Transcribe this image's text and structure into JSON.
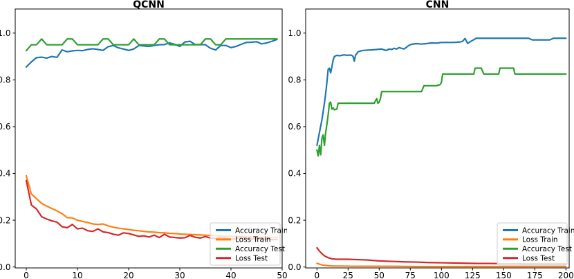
{
  "figure": {
    "background": "#ffffff"
  },
  "palette": {
    "accuracy_train": "#1f77b4",
    "loss_train": "#ff7f0e",
    "accuracy_test": "#2ca02c",
    "loss_test": "#d62728"
  },
  "chart_data": [
    {
      "id": "qcnn",
      "type": "line",
      "title": "QCNN",
      "xlabel": "",
      "ylabel": "",
      "grid": false,
      "legend_position": "lower right",
      "xlim": [
        -2.16,
        50.0
      ],
      "ylim": [
        -0.004,
        1.103
      ],
      "xticks": [
        0,
        10,
        20,
        30,
        40,
        50
      ],
      "yticks": [
        0.0,
        0.2,
        0.4,
        0.6,
        0.8,
        1.0
      ],
      "ytick_labels": [
        "0.0",
        "0.2",
        "0.4",
        "0.6",
        "0.8",
        "1.0"
      ],
      "legend": [
        "Accuracy Train",
        "Loss Train",
        "Accuracy Test",
        "Loss Test"
      ],
      "series": [
        {
          "name": "Accuracy Train",
          "color": "#1f77b4",
          "x": [
            0,
            1,
            2,
            3,
            4,
            5,
            6,
            7,
            8,
            9,
            10,
            11,
            12,
            13,
            14,
            15,
            16,
            17,
            18,
            19,
            20,
            21,
            22,
            23,
            24,
            25,
            26,
            27,
            28,
            29,
            30,
            31,
            32,
            33,
            34,
            35,
            36,
            37,
            38,
            39,
            40,
            41,
            42,
            43,
            44,
            45,
            46,
            47,
            48,
            49
          ],
          "y": [
            0.855,
            0.877,
            0.895,
            0.897,
            0.893,
            0.9,
            0.896,
            0.928,
            0.92,
            0.924,
            0.926,
            0.925,
            0.93,
            0.933,
            0.93,
            0.926,
            0.942,
            0.947,
            0.937,
            0.932,
            0.926,
            0.932,
            0.947,
            0.945,
            0.943,
            0.947,
            0.95,
            0.951,
            0.958,
            0.952,
            0.943,
            0.962,
            0.965,
            0.951,
            0.951,
            0.95,
            0.935,
            0.928,
            0.947,
            0.947,
            0.938,
            0.943,
            0.952,
            0.96,
            0.961,
            0.963,
            0.954,
            0.958,
            0.965,
            0.973
          ]
        },
        {
          "name": "Loss Train",
          "color": "#ff7f0e",
          "x": [
            0,
            1,
            2,
            3,
            4,
            5,
            6,
            7,
            8,
            9,
            10,
            11,
            12,
            13,
            14,
            15,
            16,
            17,
            18,
            19,
            20,
            21,
            22,
            23,
            24,
            25,
            26,
            27,
            28,
            29,
            30,
            31,
            32,
            33,
            34,
            35,
            36,
            37,
            38,
            39,
            40,
            41,
            42,
            43,
            44,
            45,
            46,
            47,
            48,
            49
          ],
          "y": [
            0.39,
            0.312,
            0.292,
            0.272,
            0.26,
            0.25,
            0.24,
            0.228,
            0.211,
            0.21,
            0.2,
            0.195,
            0.19,
            0.184,
            0.182,
            0.184,
            0.176,
            0.17,
            0.166,
            0.163,
            0.16,
            0.157,
            0.155,
            0.152,
            0.15,
            0.149,
            0.147,
            0.146,
            0.144,
            0.143,
            0.141,
            0.14,
            0.139,
            0.138,
            0.137,
            0.136,
            0.135,
            0.134,
            0.133,
            0.132,
            0.131,
            0.131,
            0.13,
            0.129,
            0.129,
            0.128,
            0.127,
            0.127,
            0.126,
            0.126
          ]
        },
        {
          "name": "Accuracy Test",
          "color": "#2ca02c",
          "x": [
            0,
            1,
            2,
            3,
            4,
            5,
            6,
            7,
            8,
            9,
            10,
            11,
            12,
            13,
            14,
            15,
            16,
            17,
            18,
            19,
            20,
            21,
            22,
            23,
            24,
            25,
            26,
            27,
            28,
            29,
            30,
            31,
            32,
            33,
            34,
            35,
            36,
            37,
            38,
            39,
            40,
            41,
            42,
            43,
            44,
            45,
            46,
            47,
            48,
            49
          ],
          "y": [
            0.925,
            0.95,
            0.95,
            0.975,
            0.95,
            0.95,
            0.95,
            0.95,
            0.975,
            0.975,
            0.95,
            0.95,
            0.95,
            0.95,
            0.95,
            0.975,
            0.975,
            0.95,
            0.95,
            0.95,
            0.95,
            0.975,
            0.95,
            0.95,
            0.95,
            0.95,
            0.975,
            0.975,
            0.95,
            0.95,
            0.95,
            0.95,
            0.95,
            0.95,
            0.95,
            0.975,
            0.975,
            0.95,
            0.95,
            0.975,
            0.975,
            0.975,
            0.975,
            0.975,
            0.975,
            0.975,
            0.975,
            0.975,
            0.975,
            0.975
          ]
        },
        {
          "name": "Loss Test",
          "color": "#d62728",
          "x": [
            0,
            1,
            2,
            3,
            4,
            5,
            6,
            7,
            8,
            9,
            10,
            11,
            12,
            13,
            14,
            15,
            16,
            17,
            18,
            19,
            20,
            21,
            22,
            23,
            24,
            25,
            26,
            27,
            28,
            29,
            30,
            31,
            32,
            33,
            34,
            35,
            36,
            37,
            38,
            39,
            40,
            41,
            42,
            43,
            44,
            45,
            46,
            47,
            48,
            49
          ],
          "y": [
            0.37,
            0.265,
            0.248,
            0.215,
            0.205,
            0.197,
            0.192,
            0.172,
            0.168,
            0.182,
            0.163,
            0.166,
            0.155,
            0.152,
            0.163,
            0.15,
            0.147,
            0.14,
            0.136,
            0.146,
            0.143,
            0.137,
            0.131,
            0.133,
            0.128,
            0.136,
            0.126,
            0.14,
            0.128,
            0.126,
            0.124,
            0.125,
            0.135,
            0.127,
            0.124,
            0.13,
            0.124,
            0.121,
            0.127,
            0.124,
            0.119,
            0.12,
            0.13,
            0.121,
            0.119,
            0.122,
            0.118,
            0.12,
            0.117,
            0.118
          ]
        }
      ]
    },
    {
      "id": "cnn",
      "type": "line",
      "title": "CNN",
      "xlabel": "",
      "ylabel": "",
      "grid": false,
      "legend_position": "lower right",
      "xlim": [
        -9.06,
        202.6
      ],
      "ylim": [
        -0.004,
        1.103
      ],
      "xticks": [
        0,
        25,
        50,
        75,
        100,
        125,
        150,
        175,
        200
      ],
      "yticks": [
        0.0,
        0.2,
        0.4,
        0.6,
        0.8,
        1.0
      ],
      "ytick_labels": [
        "0.0",
        "0.2",
        "0.4",
        "0.6",
        "0.8",
        "1.0"
      ],
      "legend": [
        "Accuracy Train",
        "Loss Train",
        "Accuracy Test",
        "Loss Test"
      ],
      "series": [
        {
          "name": "Accuracy Train",
          "color": "#1f77b4",
          "x": [
            0,
            2,
            4,
            6,
            7,
            8,
            9,
            10,
            11,
            12,
            13,
            14,
            16,
            18,
            20,
            22,
            24,
            26,
            28,
            29,
            30,
            31,
            33,
            36,
            40,
            44,
            48,
            52,
            54,
            56,
            58,
            60,
            62,
            64,
            66,
            68,
            70,
            72,
            74,
            76,
            80,
            84,
            88,
            92,
            96,
            100,
            105,
            110,
            115,
            117,
            119,
            121,
            124,
            128,
            132,
            140,
            150,
            160,
            170,
            173,
            180,
            187,
            190,
            195,
            200
          ],
          "y": [
            0.52,
            0.575,
            0.63,
            0.7,
            0.74,
            0.79,
            0.845,
            0.85,
            0.83,
            0.855,
            0.885,
            0.9,
            0.905,
            0.903,
            0.905,
            0.907,
            0.905,
            0.906,
            0.905,
            0.9,
            0.88,
            0.905,
            0.92,
            0.925,
            0.927,
            0.928,
            0.93,
            0.932,
            0.928,
            0.926,
            0.932,
            0.93,
            0.935,
            0.932,
            0.938,
            0.935,
            0.932,
            0.94,
            0.948,
            0.952,
            0.955,
            0.953,
            0.955,
            0.958,
            0.957,
            0.96,
            0.96,
            0.96,
            0.962,
            0.965,
            0.977,
            0.956,
            0.966,
            0.978,
            0.978,
            0.978,
            0.978,
            0.978,
            0.978,
            0.971,
            0.971,
            0.971,
            0.978,
            0.978,
            0.978
          ]
        },
        {
          "name": "Loss Train",
          "color": "#ff7f0e",
          "x": [
            0,
            2,
            4,
            6,
            8,
            10,
            14,
            20,
            30,
            40,
            60,
            80,
            100,
            120,
            140,
            160,
            180,
            200
          ],
          "y": [
            0.016,
            0.012,
            0.009,
            0.007,
            0.006,
            0.005,
            0.004,
            0.004,
            0.003,
            0.003,
            0.003,
            0.002,
            0.002,
            0.002,
            0.002,
            0.002,
            0.002,
            0.002
          ]
        },
        {
          "name": "Accuracy Test",
          "color": "#2ca02c",
          "x": [
            0,
            1,
            2,
            3,
            4,
            5,
            6,
            7,
            8,
            9,
            10,
            11,
            12,
            13,
            14,
            16,
            17,
            19,
            24,
            28,
            34,
            40,
            46,
            48,
            49,
            50,
            51,
            52,
            56,
            60,
            66,
            72,
            78,
            84,
            86,
            88,
            92,
            96,
            99,
            100,
            101,
            104,
            110,
            116,
            120,
            124,
            126,
            127,
            129,
            132,
            134,
            136,
            140,
            144,
            146,
            147,
            149,
            152,
            156,
            158,
            159,
            162,
            168,
            176,
            184,
            192,
            200
          ],
          "y": [
            0.5,
            0.475,
            0.52,
            0.48,
            0.55,
            0.565,
            0.52,
            0.575,
            0.61,
            0.65,
            0.7,
            0.705,
            0.675,
            0.68,
            0.672,
            0.675,
            0.7,
            0.7,
            0.7,
            0.7,
            0.7,
            0.7,
            0.7,
            0.72,
            0.7,
            0.705,
            0.72,
            0.75,
            0.75,
            0.75,
            0.75,
            0.75,
            0.75,
            0.75,
            0.775,
            0.775,
            0.775,
            0.775,
            0.78,
            0.79,
            0.825,
            0.825,
            0.825,
            0.825,
            0.825,
            0.825,
            0.825,
            0.85,
            0.85,
            0.85,
            0.825,
            0.825,
            0.825,
            0.825,
            0.825,
            0.85,
            0.85,
            0.85,
            0.85,
            0.85,
            0.825,
            0.825,
            0.825,
            0.825,
            0.825,
            0.825,
            0.825
          ]
        },
        {
          "name": "Loss Test",
          "color": "#d62728",
          "x": [
            0,
            1,
            2,
            3,
            4,
            5,
            6,
            8,
            10,
            12,
            14,
            16,
            20,
            25,
            30,
            35,
            40,
            50,
            60,
            70,
            80,
            90,
            100,
            110,
            120,
            130,
            140,
            150,
            160,
            170,
            180,
            190,
            200
          ],
          "y": [
            0.082,
            0.075,
            0.068,
            0.062,
            0.057,
            0.052,
            0.048,
            0.042,
            0.038,
            0.035,
            0.034,
            0.033,
            0.033,
            0.033,
            0.032,
            0.031,
            0.03,
            0.026,
            0.024,
            0.022,
            0.021,
            0.019,
            0.018,
            0.017,
            0.016,
            0.015,
            0.015,
            0.014,
            0.014,
            0.013,
            0.013,
            0.013,
            0.013
          ]
        }
      ]
    }
  ]
}
